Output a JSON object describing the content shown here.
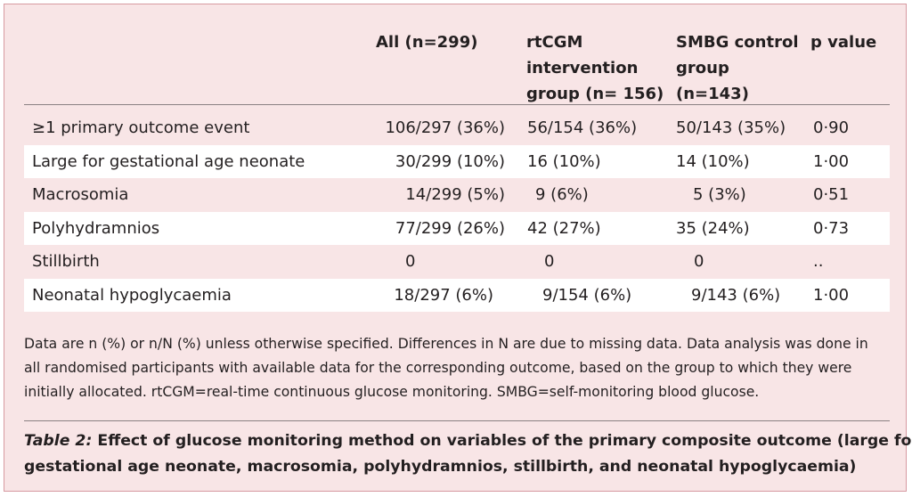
{
  "table": {
    "columns": {
      "all": [
        "All (n=299)"
      ],
      "rtcgm": [
        "rtCGM",
        "intervention",
        "group (n= 156)"
      ],
      "smbg": [
        "SMBG control",
        "group",
        "(n=143)"
      ],
      "p": [
        "p value"
      ]
    },
    "rows": [
      {
        "label": "≥1 primary outcome event",
        "all": "106/297 (36%)",
        "rtcgm": "56/154 (36%)",
        "smbg": "50/143 (35%)",
        "p": "0·90"
      },
      {
        "label": "Large for gestational age neonate",
        "all": "30/299 (10%)",
        "rtcgm": "16 (10%)",
        "smbg": "14 (10%)",
        "p": "1·00"
      },
      {
        "label": "Macrosomia",
        "all": "14/299 (5%)",
        "rtcgm": "9 (6%)",
        "smbg": "5 (3%)",
        "p": "0·51"
      },
      {
        "label": "Polyhydramnios",
        "all": "77/299 (26%)",
        "rtcgm": "42 (27%)",
        "smbg": "35 (24%)",
        "p": "0·73"
      },
      {
        "label": "Stillbirth",
        "all": "0",
        "rtcgm": "0",
        "smbg": "0",
        "p": ".."
      },
      {
        "label": "Neonatal hypoglycaemia",
        "all": "18/297 (6%)",
        "rtcgm": "9/154 (6%)",
        "smbg": "9/143 (6%)",
        "p": "1·00"
      }
    ]
  },
  "footnote": [
    "Data are n (%) or n/N (%) unless otherwise specified. Differences in N are due to missing data. Data analysis was done in",
    "all randomised participants with available data for the corresponding outcome, based on the group to which they were",
    "initially allocated. rtCGM=real-time continuous glucose monitoring. SMBG=self-monitoring blood glucose."
  ],
  "caption": {
    "label": "Table 2:",
    "lines": [
      " Effect of glucose monitoring method on variables of the primary composite outcome (large for",
      "gestational age neonate, macrosomia, polyhydramnios, stillbirth, and neonatal hypoglycaemia)"
    ]
  },
  "colors": {
    "background": "#f8e5e6",
    "border": "#d79aa1",
    "alt_row": "#ffffff",
    "text": "#231f20"
  }
}
